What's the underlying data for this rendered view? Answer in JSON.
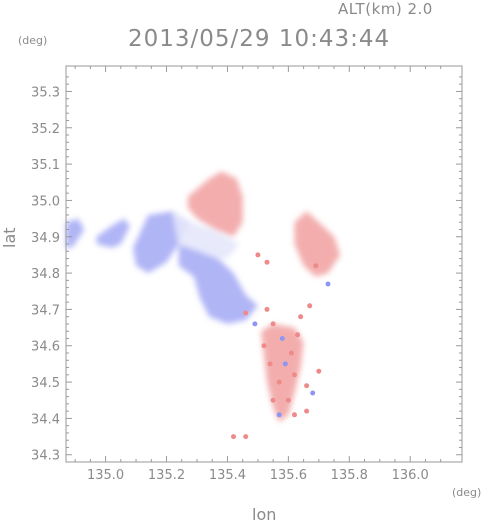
{
  "header": {
    "altitude_label": "ALT(km) 2.0",
    "timestamp": "2013/05/29 10:43:44"
  },
  "chart_data": {
    "type": "heatmap",
    "xlabel": "lon",
    "ylabel": "lat",
    "x_unit": "(deg)",
    "y_unit": "(deg)",
    "xlim": [
      134.87,
      136.17
    ],
    "ylim": [
      34.28,
      35.37
    ],
    "x_ticks": [
      "135.0",
      "135.2",
      "135.4",
      "135.6",
      "135.8",
      "136.0"
    ],
    "y_ticks": [
      "34.3",
      "34.4",
      "34.5",
      "34.6",
      "34.7",
      "34.8",
      "34.9",
      "35.0",
      "35.1",
      "35.2",
      "35.3"
    ],
    "colors": {
      "negative": "#8f96f2",
      "neutral": "#ffffff",
      "positive": "#ee8a8a",
      "axis": "#9a9a9a"
    },
    "regions": [
      {
        "sign": "negative",
        "polygon": [
          [
            134.87,
            34.94
          ],
          [
            134.91,
            34.95
          ],
          [
            134.93,
            34.92
          ],
          [
            134.89,
            34.87
          ],
          [
            134.87,
            34.87
          ]
        ]
      },
      {
        "sign": "negative",
        "polygon": [
          [
            134.97,
            34.9
          ],
          [
            135.02,
            34.93
          ],
          [
            135.06,
            34.95
          ],
          [
            135.08,
            34.93
          ],
          [
            135.05,
            34.88
          ],
          [
            135.02,
            34.87
          ],
          [
            134.97,
            34.88
          ]
        ]
      },
      {
        "sign": "negative",
        "polygon": [
          [
            135.09,
            34.87
          ],
          [
            135.14,
            34.96
          ],
          [
            135.22,
            34.97
          ],
          [
            135.28,
            34.94
          ],
          [
            135.24,
            34.88
          ],
          [
            135.2,
            34.83
          ],
          [
            135.14,
            34.8
          ],
          [
            135.1,
            34.82
          ]
        ]
      },
      {
        "sign": "negative",
        "polygon": [
          [
            135.24,
            34.88
          ],
          [
            135.31,
            34.86
          ],
          [
            135.37,
            34.84
          ],
          [
            135.42,
            34.8
          ],
          [
            135.46,
            34.74
          ],
          [
            135.5,
            34.71
          ],
          [
            135.46,
            34.67
          ],
          [
            135.4,
            34.66
          ],
          [
            135.34,
            34.68
          ],
          [
            135.31,
            34.73
          ],
          [
            135.29,
            34.79
          ],
          [
            135.24,
            34.82
          ]
        ]
      },
      {
        "sign": "neutral",
        "polygon": [
          [
            135.22,
            34.97
          ],
          [
            135.28,
            34.94
          ],
          [
            135.35,
            34.92
          ],
          [
            135.4,
            34.9
          ],
          [
            135.44,
            34.88
          ],
          [
            135.4,
            34.84
          ],
          [
            135.37,
            34.84
          ],
          [
            135.31,
            34.86
          ],
          [
            135.24,
            34.88
          ]
        ]
      },
      {
        "sign": "positive",
        "polygon": [
          [
            135.27,
            35.01
          ],
          [
            135.34,
            35.06
          ],
          [
            135.38,
            35.08
          ],
          [
            135.43,
            35.06
          ],
          [
            135.45,
            35.01
          ],
          [
            135.45,
            34.94
          ],
          [
            135.42,
            34.9
          ],
          [
            135.36,
            34.92
          ],
          [
            135.3,
            34.95
          ],
          [
            135.27,
            34.98
          ]
        ]
      },
      {
        "sign": "positive",
        "polygon": [
          [
            135.62,
            34.94
          ],
          [
            135.66,
            34.97
          ],
          [
            135.7,
            34.94
          ],
          [
            135.75,
            34.9
          ],
          [
            135.77,
            34.85
          ],
          [
            135.73,
            34.8
          ],
          [
            135.69,
            34.79
          ],
          [
            135.65,
            34.82
          ],
          [
            135.62,
            34.88
          ]
        ]
      },
      {
        "sign": "positive",
        "polygon": [
          [
            135.51,
            34.64
          ],
          [
            135.55,
            34.66
          ],
          [
            135.62,
            34.65
          ],
          [
            135.65,
            34.61
          ],
          [
            135.64,
            34.54
          ],
          [
            135.62,
            34.47
          ],
          [
            135.6,
            34.41
          ],
          [
            135.57,
            34.39
          ],
          [
            135.55,
            34.43
          ],
          [
            135.53,
            34.5
          ],
          [
            135.52,
            34.57
          ]
        ]
      }
    ],
    "speckles": [
      [
        135.52,
        34.6,
        1
      ],
      [
        135.55,
        34.66,
        1
      ],
      [
        135.58,
        34.62,
        -1
      ],
      [
        135.61,
        34.58,
        1
      ],
      [
        135.63,
        34.63,
        1
      ],
      [
        135.54,
        34.55,
        1
      ],
      [
        135.59,
        34.55,
        -1
      ],
      [
        135.62,
        34.52,
        1
      ],
      [
        135.57,
        34.5,
        1
      ],
      [
        135.66,
        34.49,
        1
      ],
      [
        135.68,
        34.47,
        -1
      ],
      [
        135.6,
        34.45,
        1
      ],
      [
        135.55,
        34.45,
        1
      ],
      [
        135.57,
        34.41,
        -1
      ],
      [
        135.62,
        34.41,
        1
      ],
      [
        135.66,
        34.42,
        1
      ],
      [
        135.64,
        34.68,
        1
      ],
      [
        135.67,
        34.71,
        1
      ],
      [
        135.69,
        34.82,
        1
      ],
      [
        135.73,
        34.77,
        -1
      ],
      [
        135.5,
        34.85,
        1
      ],
      [
        135.53,
        34.83,
        1
      ],
      [
        135.46,
        34.69,
        1
      ],
      [
        135.49,
        34.66,
        -1
      ],
      [
        135.42,
        34.35,
        1
      ],
      [
        135.46,
        34.35,
        1
      ],
      [
        135.7,
        34.53,
        1
      ],
      [
        135.53,
        34.7,
        1
      ]
    ]
  }
}
